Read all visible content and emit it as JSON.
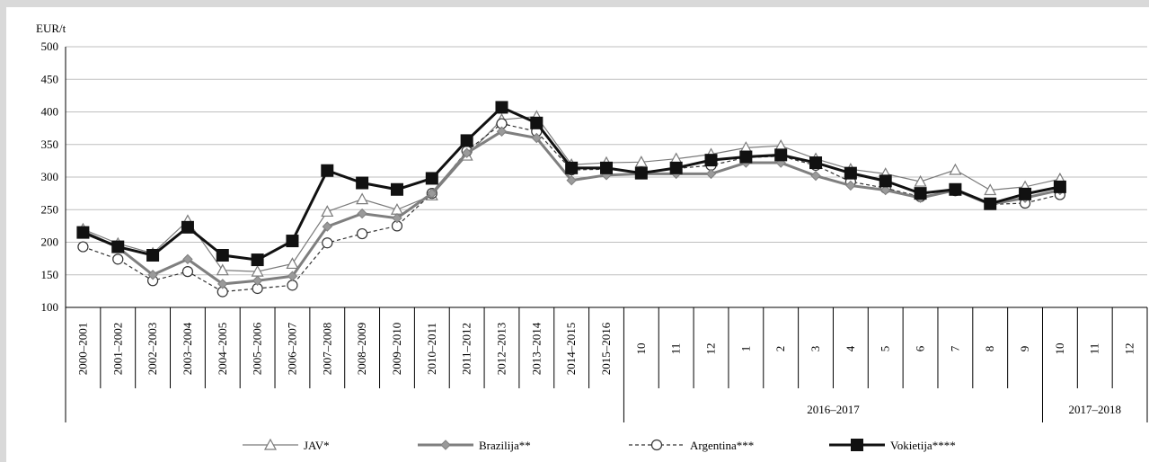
{
  "chart_data": {
    "type": "line",
    "ylabel": "EUR/t",
    "ylim": [
      100,
      500
    ],
    "yticks": [
      100,
      150,
      200,
      250,
      300,
      350,
      400,
      450,
      500
    ],
    "grid": "horizontal",
    "legend_position": "bottom",
    "categories": [
      "2000–2001",
      "2001–2002",
      "2002–2003",
      "2003–2004",
      "2004–2005",
      "2005–2006",
      "2006–2007",
      "2007–2008",
      "2008–2009",
      "2009–2010",
      "2010–2011",
      "2011–2012",
      "2012–2013",
      "2013–2014",
      "2014–2015",
      "2015–2016",
      "10",
      "11",
      "12",
      "1",
      "2",
      "3",
      "4",
      "5",
      "6",
      "7",
      "8",
      "9",
      "10",
      "11",
      "12"
    ],
    "groups": [
      {
        "label": "2016–2017",
        "start": 16,
        "end": 27
      },
      {
        "label": "2017–2018",
        "start": 28,
        "end": 30
      }
    ],
    "series": [
      {
        "name": "JAV*",
        "color": "#7a7a7a",
        "marker": "triangle-open",
        "line": "solid-thin",
        "values": [
          220,
          198,
          183,
          233,
          157,
          155,
          167,
          247,
          266,
          250,
          272,
          333,
          388,
          393,
          319,
          322,
          323,
          328,
          335,
          345,
          348,
          328,
          312,
          305,
          293,
          311,
          280,
          285,
          297,
          null,
          null
        ]
      },
      {
        "name": "Brazilija**",
        "color": "#7f7f7f",
        "marker": "diamond-filled",
        "line": "solid-thick",
        "values": [
          217,
          192,
          150,
          174,
          136,
          141,
          148,
          224,
          244,
          237,
          275,
          337,
          370,
          360,
          295,
          303,
          305,
          305,
          305,
          322,
          322,
          302,
          287,
          280,
          268,
          280,
          258,
          268,
          280,
          null,
          null
        ]
      },
      {
        "name": "Argentina***",
        "color": "#333333",
        "marker": "circle-open",
        "line": "dashed",
        "values": [
          193,
          174,
          141,
          155,
          124,
          129,
          134,
          199,
          213,
          225,
          275,
          340,
          382,
          370,
          311,
          312,
          308,
          313,
          318,
          330,
          332,
          318,
          293,
          283,
          270,
          279,
          258,
          260,
          273,
          null,
          null
        ]
      },
      {
        "name": "Vokietija****",
        "color": "#111111",
        "marker": "square-filled",
        "line": "solid-thick",
        "values": [
          215,
          193,
          180,
          223,
          180,
          173,
          202,
          310,
          291,
          281,
          298,
          356,
          407,
          383,
          314,
          314,
          306,
          314,
          326,
          331,
          334,
          322,
          306,
          294,
          275,
          281,
          259,
          274,
          285,
          null,
          null
        ]
      }
    ]
  }
}
